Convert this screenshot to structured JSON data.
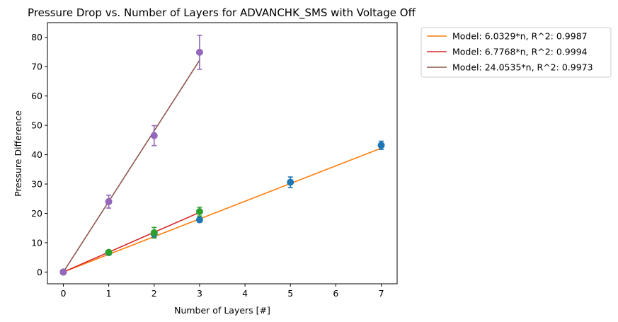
{
  "chart_data": {
    "type": "scatter",
    "title": "Pressure Drop vs. Number of Layers for ADVANCHK_SMS with Voltage Off",
    "xlabel": "Number of Layers [#]",
    "ylabel": "Pressure Difference",
    "xlim": [
      -0.35,
      7.35
    ],
    "ylim": [
      -4,
      85
    ],
    "xticks": [
      0,
      1,
      2,
      3,
      4,
      5,
      6,
      7
    ],
    "yticks": [
      0,
      10,
      20,
      30,
      40,
      50,
      60,
      70,
      80
    ],
    "grid": false,
    "legend_position": "outside-top-right",
    "data_series": [
      {
        "color": "#1f77b4",
        "points": [
          {
            "x": 0,
            "y": 0,
            "err": 0.6
          },
          {
            "x": 1,
            "y": 6.6,
            "err": 0.5
          },
          {
            "x": 2,
            "y": 13.0,
            "err": 1.2
          },
          {
            "x": 3,
            "y": 17.8,
            "err": 0.8
          },
          {
            "x": 5,
            "y": 30.6,
            "err": 1.8
          },
          {
            "x": 7,
            "y": 43.2,
            "err": 1.4
          }
        ]
      },
      {
        "color": "#2ca02c",
        "points": [
          {
            "x": 0,
            "y": 0,
            "err": 0.6
          },
          {
            "x": 1,
            "y": 6.7,
            "err": 0.6
          },
          {
            "x": 2,
            "y": 13.4,
            "err": 1.8
          },
          {
            "x": 3,
            "y": 20.6,
            "err": 1.5
          }
        ]
      },
      {
        "color": "#9467bd",
        "points": [
          {
            "x": 0,
            "y": 0,
            "err": 0.6
          },
          {
            "x": 1,
            "y": 24.0,
            "err": 2.2
          },
          {
            "x": 2,
            "y": 46.5,
            "err": 3.4
          },
          {
            "x": 3,
            "y": 74.9,
            "err": 5.8
          }
        ]
      }
    ],
    "model_series": [
      {
        "name": "Model: 6.0329*n, R^2: 0.9987",
        "color": "#ff7f0e",
        "slope": 6.0329,
        "x": [
          0,
          7
        ]
      },
      {
        "name": "Model: 6.7768*n, R^2: 0.9994",
        "color": "#d62728",
        "slope": 6.7768,
        "x": [
          0,
          3
        ]
      },
      {
        "name": "Model: 24.0535*n, R^2: 0.9973",
        "color": "#8c564b",
        "slope": 24.0535,
        "x": [
          0,
          3
        ]
      }
    ]
  }
}
